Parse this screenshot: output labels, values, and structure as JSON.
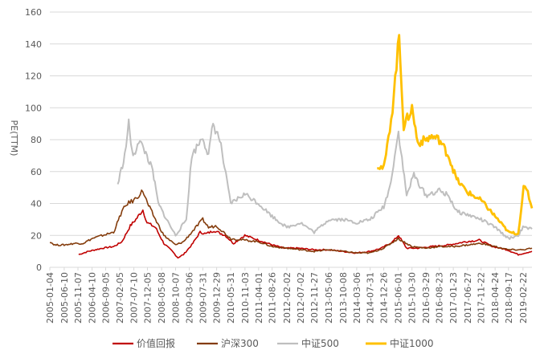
{
  "chart_data": {
    "type": "line",
    "title": "",
    "xlabel": "",
    "ylabel": "PE(TTM)",
    "ylim": [
      0,
      160
    ],
    "yticks": [
      0,
      20,
      40,
      60,
      80,
      100,
      120,
      140,
      160
    ],
    "xlim": [
      "2005-01-04",
      "2019-05-31"
    ],
    "xticks": [
      "2005-01-04",
      "2005-06-10",
      "2005-11-07",
      "2006-04-10",
      "2006-09-05",
      "2007-02-05",
      "2007-07-10",
      "2007-12-05",
      "2008-05-08",
      "2008-10-07",
      "2009-03-06",
      "2009-07-31",
      "2009-12-29",
      "2010-05-31",
      "2010-11-03",
      "2011-04-01",
      "2011-08-26",
      "2012-02-02",
      "2012-07-02",
      "2012-11-27",
      "2013-05-06",
      "2013-10-08",
      "2014-03-06",
      "2014-07-31",
      "2014-12-26",
      "2015-06-01",
      "2015-10-30",
      "2016-03-29",
      "2016-08-23",
      "2017-01-23",
      "2017-06-27",
      "2017-11-22",
      "2018-04-24",
      "2018-09-17",
      "2019-02-22"
    ],
    "grid": true,
    "legend_position": "bottom",
    "series": [
      {
        "name": "价值回报",
        "color": "#C00000",
        "points": [
          [
            "2005-11-15",
            8
          ],
          [
            "2006-03-01",
            10
          ],
          [
            "2006-08-01",
            12
          ],
          [
            "2006-12-01",
            13
          ],
          [
            "2007-03-01",
            16
          ],
          [
            "2007-06-01",
            26
          ],
          [
            "2007-08-01",
            30
          ],
          [
            "2007-10-16",
            36
          ],
          [
            "2007-12-01",
            28
          ],
          [
            "2008-03-01",
            25
          ],
          [
            "2008-06-01",
            15
          ],
          [
            "2008-09-01",
            10
          ],
          [
            "2008-11-01",
            6
          ],
          [
            "2009-01-01",
            8
          ],
          [
            "2009-04-01",
            14
          ],
          [
            "2009-07-01",
            22
          ],
          [
            "2009-09-01",
            21
          ],
          [
            "2009-12-01",
            23
          ],
          [
            "2010-04-01",
            20
          ],
          [
            "2010-07-01",
            15
          ],
          [
            "2010-11-01",
            20
          ],
          [
            "2011-04-01",
            17
          ],
          [
            "2011-09-01",
            14
          ],
          [
            "2012-01-01",
            12
          ],
          [
            "2012-06-01",
            12
          ],
          [
            "2012-12-01",
            11
          ],
          [
            "2013-05-01",
            11
          ],
          [
            "2013-10-01",
            10
          ],
          [
            "2014-03-01",
            9
          ],
          [
            "2014-08-01",
            10
          ],
          [
            "2014-12-01",
            12
          ],
          [
            "2015-04-01",
            16
          ],
          [
            "2015-06-05",
            20
          ],
          [
            "2015-09-01",
            12
          ],
          [
            "2016-01-01",
            12
          ],
          [
            "2016-06-01",
            13
          ],
          [
            "2016-12-01",
            14
          ],
          [
            "2017-06-01",
            16
          ],
          [
            "2017-11-01",
            17
          ],
          [
            "2018-04-01",
            13
          ],
          [
            "2018-09-01",
            11
          ],
          [
            "2019-01-01",
            8
          ],
          [
            "2019-05-31",
            10
          ]
        ]
      },
      {
        "name": "沪深300",
        "color": "#843C0C",
        "points": [
          [
            "2005-01-04",
            16
          ],
          [
            "2005-03-01",
            14
          ],
          [
            "2005-06-10",
            14
          ],
          [
            "2005-10-01",
            15
          ],
          [
            "2006-01-01",
            15
          ],
          [
            "2006-04-10",
            18
          ],
          [
            "2006-08-01",
            20
          ],
          [
            "2006-12-01",
            22
          ],
          [
            "2007-03-01",
            35
          ],
          [
            "2007-05-01",
            40
          ],
          [
            "2007-07-10",
            42
          ],
          [
            "2007-10-16",
            48
          ],
          [
            "2007-12-05",
            40
          ],
          [
            "2008-03-01",
            30
          ],
          [
            "2008-06-01",
            20
          ],
          [
            "2008-10-07",
            14
          ],
          [
            "2009-01-01",
            16
          ],
          [
            "2009-04-01",
            22
          ],
          [
            "2009-07-31",
            30
          ],
          [
            "2009-10-01",
            25
          ],
          [
            "2009-12-29",
            26
          ],
          [
            "2010-05-31",
            18
          ],
          [
            "2010-11-03",
            17
          ],
          [
            "2011-04-01",
            16
          ],
          [
            "2011-08-26",
            13
          ],
          [
            "2012-02-02",
            12
          ],
          [
            "2012-07-02",
            11
          ],
          [
            "2012-11-27",
            10
          ],
          [
            "2013-05-06",
            11
          ],
          [
            "2013-10-08",
            10
          ],
          [
            "2014-03-06",
            9
          ],
          [
            "2014-07-31",
            9
          ],
          [
            "2014-12-26",
            12
          ],
          [
            "2015-06-01",
            18
          ],
          [
            "2015-10-30",
            13
          ],
          [
            "2016-03-29",
            12
          ],
          [
            "2016-08-23",
            13
          ],
          [
            "2017-01-23",
            13
          ],
          [
            "2017-06-27",
            14
          ],
          [
            "2017-11-22",
            15
          ],
          [
            "2018-04-24",
            13
          ],
          [
            "2018-09-17",
            11
          ],
          [
            "2019-02-22",
            11
          ],
          [
            "2019-05-31",
            12
          ]
        ]
      },
      {
        "name": "中证500",
        "color": "#BFBFBF",
        "points": [
          [
            "2007-01-15",
            52
          ],
          [
            "2007-04-01",
            70
          ],
          [
            "2007-05-15",
            90
          ],
          [
            "2007-07-01",
            68
          ],
          [
            "2007-09-01",
            80
          ],
          [
            "2007-12-01",
            70
          ],
          [
            "2008-02-01",
            60
          ],
          [
            "2008-04-01",
            40
          ],
          [
            "2008-07-01",
            30
          ],
          [
            "2008-10-07",
            20
          ],
          [
            "2009-02-01",
            30
          ],
          [
            "2009-04-01",
            70
          ],
          [
            "2009-07-31",
            82
          ],
          [
            "2009-10-01",
            70
          ],
          [
            "2009-11-20",
            90
          ],
          [
            "2010-02-01",
            80
          ],
          [
            "2010-05-31",
            40
          ],
          [
            "2010-11-03",
            46
          ],
          [
            "2011-04-01",
            40
          ],
          [
            "2011-08-26",
            32
          ],
          [
            "2012-02-02",
            25
          ],
          [
            "2012-07-02",
            28
          ],
          [
            "2012-11-27",
            22
          ],
          [
            "2013-05-06",
            30
          ],
          [
            "2013-10-08",
            30
          ],
          [
            "2014-03-06",
            28
          ],
          [
            "2014-07-31",
            30
          ],
          [
            "2014-12-26",
            38
          ],
          [
            "2015-03-01",
            50
          ],
          [
            "2015-06-05",
            85
          ],
          [
            "2015-09-01",
            45
          ],
          [
            "2015-11-20",
            58
          ],
          [
            "2016-03-29",
            45
          ],
          [
            "2016-08-23",
            48
          ],
          [
            "2016-12-01",
            45
          ],
          [
            "2017-03-01",
            35
          ],
          [
            "2017-06-27",
            33
          ],
          [
            "2017-11-22",
            30
          ],
          [
            "2018-04-24",
            25
          ],
          [
            "2018-09-17",
            18
          ],
          [
            "2019-01-01",
            20
          ],
          [
            "2019-02-22",
            25
          ],
          [
            "2019-05-31",
            24
          ]
        ]
      },
      {
        "name": "中证1000",
        "color": "#FFC000",
        "points": [
          [
            "2014-10-15",
            64
          ],
          [
            "2014-12-26",
            62
          ],
          [
            "2015-02-01",
            75
          ],
          [
            "2015-04-01",
            100
          ],
          [
            "2015-06-12",
            145
          ],
          [
            "2015-08-01",
            88
          ],
          [
            "2015-10-30",
            100
          ],
          [
            "2016-01-01",
            78
          ],
          [
            "2016-03-29",
            80
          ],
          [
            "2016-06-01",
            82
          ],
          [
            "2016-08-23",
            80
          ],
          [
            "2016-12-01",
            70
          ],
          [
            "2017-03-01",
            55
          ],
          [
            "2017-06-27",
            47
          ],
          [
            "2017-11-22",
            42
          ],
          [
            "2018-04-24",
            32
          ],
          [
            "2018-09-17",
            22
          ],
          [
            "2019-01-01",
            21
          ],
          [
            "2019-03-01",
            50
          ],
          [
            "2019-04-15",
            47
          ],
          [
            "2019-05-31",
            37
          ]
        ]
      }
    ]
  }
}
